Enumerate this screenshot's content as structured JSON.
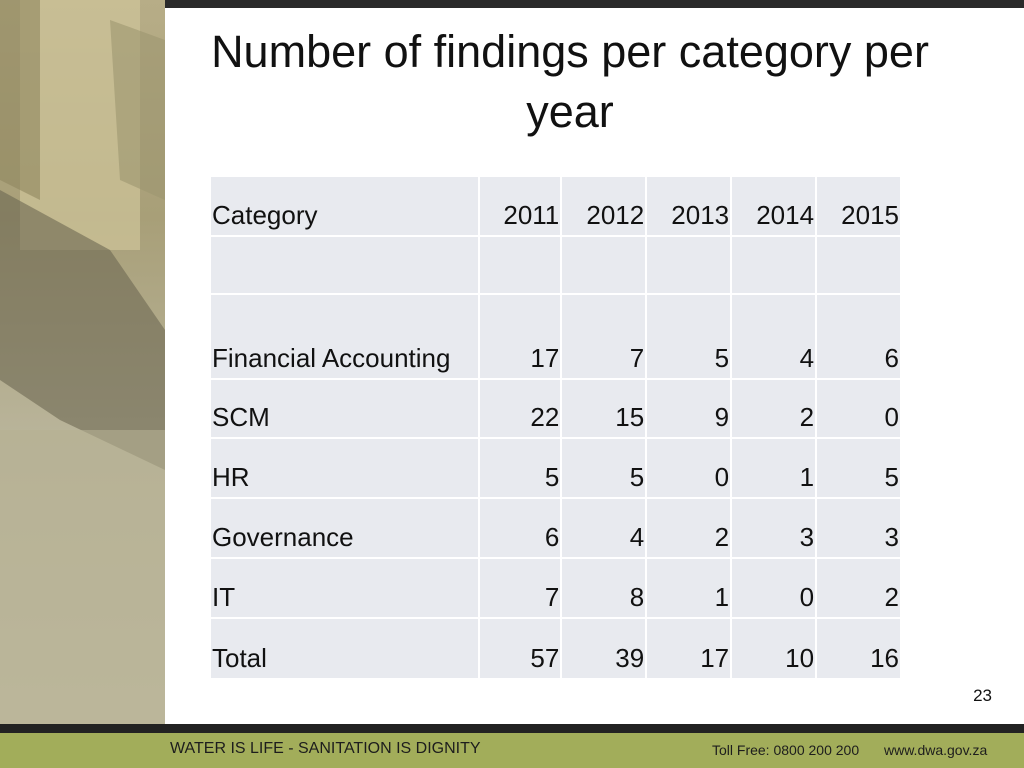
{
  "title": "Number of findings per category per year",
  "table": {
    "header": [
      "Category",
      2011,
      2012,
      2013,
      2014,
      2015
    ],
    "rows": [
      [
        "Financial Accounting",
        17,
        7,
        5,
        4,
        6
      ],
      [
        "SCM",
        22,
        15,
        9,
        2,
        0
      ],
      [
        "HR",
        5,
        5,
        0,
        1,
        5
      ],
      [
        "Governance",
        6,
        4,
        2,
        3,
        3
      ],
      [
        "IT",
        7,
        8,
        1,
        0,
        2
      ],
      [
        "Total",
        57,
        39,
        17,
        10,
        16
      ]
    ]
  },
  "page_number": "23",
  "footer": {
    "slogan": "WATER IS LIFE - SANITATION IS DIGNITY",
    "toll_free": "Toll Free: 0800 200 200",
    "website": "www.dwa.gov.za"
  }
}
